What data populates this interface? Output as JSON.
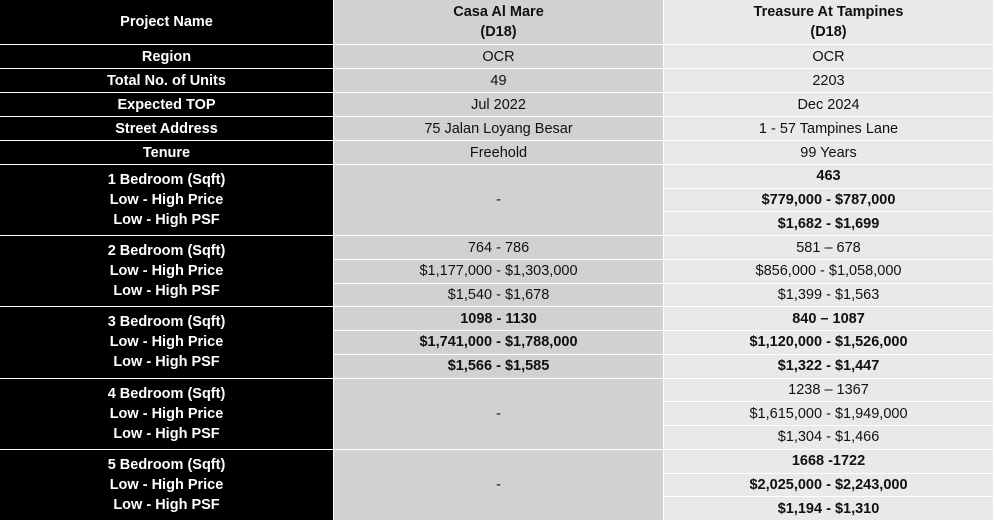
{
  "header": {
    "label": "Project Name",
    "projects": [
      {
        "name": "Casa Al Mare",
        "district": "(D18)"
      },
      {
        "name": "Treasure At Tampines",
        "district": "(D18)"
      }
    ]
  },
  "rows": [
    {
      "label": "Region",
      "values": [
        "OCR",
        "OCR"
      ]
    },
    {
      "label": "Total No. of Units",
      "values": [
        "49",
        "2203"
      ]
    },
    {
      "label": "Expected TOP",
      "values": [
        "Jul 2022",
        "Dec 2024"
      ]
    },
    {
      "label": "Street Address",
      "values": [
        "75 Jalan Loyang Besar",
        "1 - 57 Tampines Lane"
      ]
    },
    {
      "label": "Tenure",
      "values": [
        "Freehold",
        "99 Years"
      ]
    }
  ],
  "groups": [
    {
      "labels": [
        "1 Bedroom (Sqft)",
        "Low - High Price",
        "Low - High PSF"
      ],
      "columns": [
        {
          "values": [
            "-"
          ],
          "bold": false
        },
        {
          "values": [
            "463",
            "$779,000 - $787,000",
            "$1,682 - $1,699"
          ],
          "bold": true
        }
      ]
    },
    {
      "labels": [
        "2 Bedroom (Sqft)",
        "Low - High Price",
        "Low - High PSF"
      ],
      "columns": [
        {
          "values": [
            "764 - 786",
            "$1,177,000 - $1,303,000",
            "$1,540 - $1,678"
          ],
          "bold": false
        },
        {
          "values": [
            "581 – 678",
            "$856,000 - $1,058,000",
            "$1,399 - $1,563"
          ],
          "bold": false
        }
      ]
    },
    {
      "labels": [
        "3 Bedroom (Sqft)",
        "Low - High Price",
        "Low - High PSF"
      ],
      "columns": [
        {
          "values": [
            "1098 - 1130",
            "$1,741,000 - $1,788,000",
            "$1,566 - $1,585"
          ],
          "bold": true
        },
        {
          "values": [
            "840 – 1087",
            "$1,120,000 - $1,526,000",
            "$1,322 - $1,447"
          ],
          "bold": true
        }
      ]
    },
    {
      "labels": [
        "4 Bedroom (Sqft)",
        "Low - High Price",
        "Low - High PSF"
      ],
      "columns": [
        {
          "values": [
            "-"
          ],
          "bold": false
        },
        {
          "values": [
            "1238 – 1367",
            "$1,615,000 - $1,949,000",
            "$1,304 - $1,466"
          ],
          "bold": false
        }
      ]
    },
    {
      "labels": [
        "5 Bedroom (Sqft)",
        "Low - High Price",
        "Low - High PSF"
      ],
      "columns": [
        {
          "values": [
            "-"
          ],
          "bold": false
        },
        {
          "values": [
            "1668 -1722",
            "$2,025,000 - $2,243,000",
            "$1,194 - $1,310"
          ],
          "bold": true
        }
      ]
    }
  ]
}
